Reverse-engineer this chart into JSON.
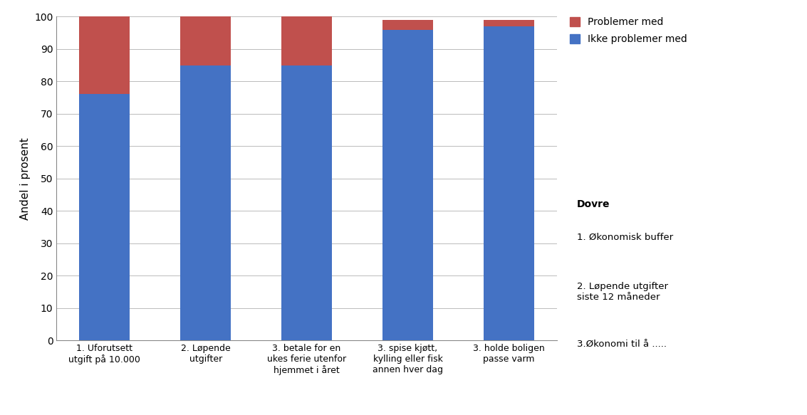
{
  "categories": [
    "1. Uforutsett\nutgift på 10.000",
    "2. Løpende\nutgifter",
    "3. betale for en\nukes ferie utenfor\nhjemmet i året",
    "3. spise kjøtt,\nkylling eller fisk\nannen hver dag",
    "3. holde boligen\npasse varm"
  ],
  "blue_values": [
    76,
    85,
    85,
    96,
    97
  ],
  "red_values": [
    24,
    15,
    15,
    3,
    2
  ],
  "blue_color": "#4472C4",
  "red_color": "#C0504D",
  "ylabel": "Andel i prosent",
  "ylim": [
    0,
    100
  ],
  "yticks": [
    0,
    10,
    20,
    30,
    40,
    50,
    60,
    70,
    80,
    90,
    100
  ],
  "legend_labels": [
    "Problemer med",
    "Ikke problemer med"
  ],
  "annotation_title": "Dovre",
  "annotation_lines": [
    "1. Økonomisk buffer",
    "2. Løpende utgifter\nsiste 12 måneder",
    "3.Økonomi til å ....."
  ],
  "background_color": "#FFFFFF",
  "grid_color": "#BBBBBB"
}
